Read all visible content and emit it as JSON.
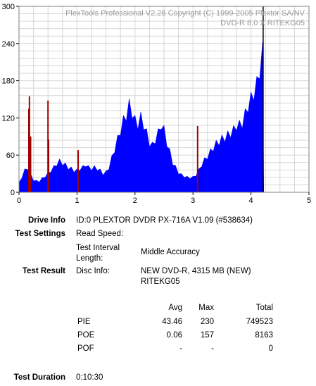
{
  "chart_data": {
    "type": "area",
    "header": [
      "PlexTools Professional V2.28 Copyright (C) 1999-2005 Plextor SA/NV",
      "DVD-R   8.0 X   RITEKG05"
    ],
    "xlim": [
      0,
      5
    ],
    "ylim": [
      0,
      300
    ],
    "xticks": [
      "0",
      "1",
      "2",
      "3",
      "4",
      "5"
    ],
    "yticks": [
      "0",
      "60",
      "120",
      "180",
      "240",
      "300"
    ],
    "grid": true,
    "series": [
      {
        "color": "#0000ff",
        "x": [
          0.0,
          0.05,
          0.1,
          0.15,
          0.2,
          0.25,
          0.3,
          0.35,
          0.4,
          0.45,
          0.5,
          0.55,
          0.6,
          0.65,
          0.7,
          0.75,
          0.8,
          0.85,
          0.9,
          0.95,
          1.0,
          1.05,
          1.1,
          1.15,
          1.2,
          1.25,
          1.3,
          1.35,
          1.4,
          1.45,
          1.5,
          1.55,
          1.6,
          1.65,
          1.7,
          1.75,
          1.8,
          1.85,
          1.9,
          1.95,
          2.0,
          2.05,
          2.1,
          2.15,
          2.2,
          2.25,
          2.3,
          2.35,
          2.4,
          2.45,
          2.5,
          2.55,
          2.6,
          2.65,
          2.7,
          2.75,
          2.8,
          2.85,
          2.9,
          2.95,
          3.0,
          3.05,
          3.1,
          3.15,
          3.2,
          3.25,
          3.3,
          3.35,
          3.4,
          3.45,
          3.5,
          3.55,
          3.6,
          3.65,
          3.7,
          3.75,
          3.8,
          3.85,
          3.9,
          3.95,
          4.0,
          4.05,
          4.1,
          4.15,
          4.2,
          4.22
        ],
        "values": [
          15,
          25,
          35,
          40,
          28,
          20,
          18,
          18,
          22,
          26,
          30,
          35,
          40,
          46,
          50,
          47,
          44,
          40,
          38,
          35,
          35,
          38,
          40,
          45,
          40,
          38,
          40,
          38,
          35,
          30,
          32,
          40,
          55,
          70,
          85,
          100,
          115,
          125,
          140,
          130,
          115,
          110,
          120,
          110,
          95,
          80,
          75,
          85,
          95,
          110,
          100,
          80,
          65,
          48,
          40,
          32,
          28,
          26,
          24,
          24,
          24,
          28,
          35,
          45,
          52,
          58,
          65,
          72,
          78,
          82,
          86,
          88,
          92,
          96,
          100,
          108,
          108,
          112,
          125,
          140,
          150,
          160,
          175,
          195,
          230,
          0
        ]
      }
    ],
    "spikes": [
      {
        "x": 0.17,
        "value": 135
      },
      {
        "x": 0.18,
        "value": 155
      },
      {
        "x": 0.2,
        "value": 90
      },
      {
        "x": 0.5,
        "value": 148
      },
      {
        "x": 0.51,
        "value": 85
      },
      {
        "x": 1.02,
        "value": 68
      },
      {
        "x": 3.08,
        "value": 107
      }
    ],
    "line_marker": {
      "x": 4.21
    }
  },
  "info": {
    "drive_label": "Drive Info",
    "drive_value": "ID:0 PLEXTOR DVDR PX-716A V1.09 (#538634)",
    "settings_label": "Test Settings",
    "read_speed_label": "Read Speed:",
    "read_speed_value": "",
    "interval_label_1": "Test Interval",
    "interval_label_2": "Length:",
    "interval_value": "Middle Accuracy",
    "result_label": "Test Result",
    "disc_label": "Disc Info:",
    "disc_value_1": "NEW DVD-R, 4315 MB (NEW)",
    "disc_value_2": "RITEKG05",
    "duration_label": "Test Duration",
    "duration_value": "0:10:30"
  },
  "results": {
    "headers": [
      "Avg",
      "Max",
      "Total"
    ],
    "rows": [
      {
        "name": "PIE",
        "avg": "43.46",
        "max": "230",
        "total": "749523"
      },
      {
        "name": "POE",
        "avg": "0.06",
        "max": "157",
        "total": "8163"
      },
      {
        "name": "POF",
        "avg": "-",
        "max": "-",
        "total": "0"
      }
    ]
  }
}
